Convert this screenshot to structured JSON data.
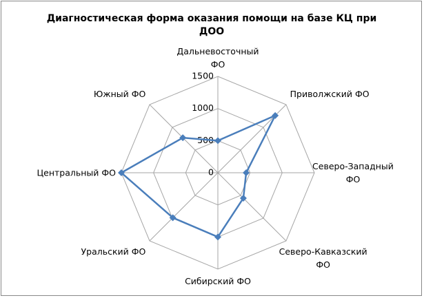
{
  "chart_data": {
    "type": "radar",
    "title": "Диагностическая форма оказания помощи на базе КЦ при ДОО",
    "categories": [
      "Дальневосточный ФО",
      "Приволжский ФО",
      "Северо-Западный ФО",
      "Северо-Кавказский ФО",
      "Сибирский ФО",
      "Уральский ФО",
      "Центральный ФО",
      "Южный ФО"
    ],
    "series": [
      {
        "name": "Диагностическая форма оказания помощи на базе КЦ при ДОО",
        "color": "#4a7ebb",
        "values": [
          500,
          1260,
          440,
          560,
          1000,
          990,
          1500,
          770
        ]
      }
    ],
    "ylim": [
      0,
      1500
    ],
    "yticks": [
      0,
      500,
      1000,
      1500
    ],
    "grid": true
  }
}
